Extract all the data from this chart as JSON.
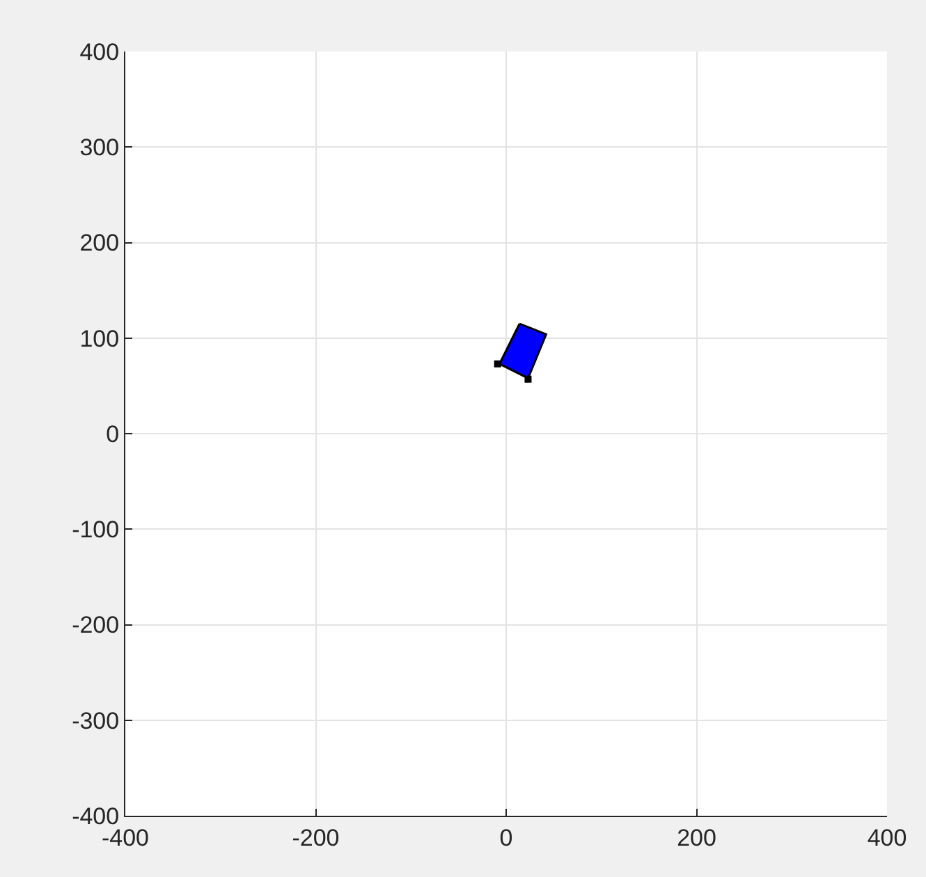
{
  "chart_data": {
    "type": "area",
    "xlim": [
      -400,
      400
    ],
    "xticks": [
      -400,
      -200,
      0,
      200,
      400
    ],
    "ylim": [
      -400,
      400
    ],
    "yticks": [
      -400,
      -300,
      -200,
      -100,
      0,
      100,
      200,
      300,
      400
    ],
    "grid": true,
    "relative": false,
    "series": [
      {
        "color": "#0000ff",
        "x": [
          14,
          42,
          23,
          -7,
          14
        ],
        "values": [
          115,
          104,
          58,
          73,
          115
        ]
      },
      {
        "type": "scatter",
        "color": "#000000",
        "marker": "square",
        "x": [
          -9,
          23
        ],
        "values": [
          73,
          57
        ]
      }
    ]
  }
}
